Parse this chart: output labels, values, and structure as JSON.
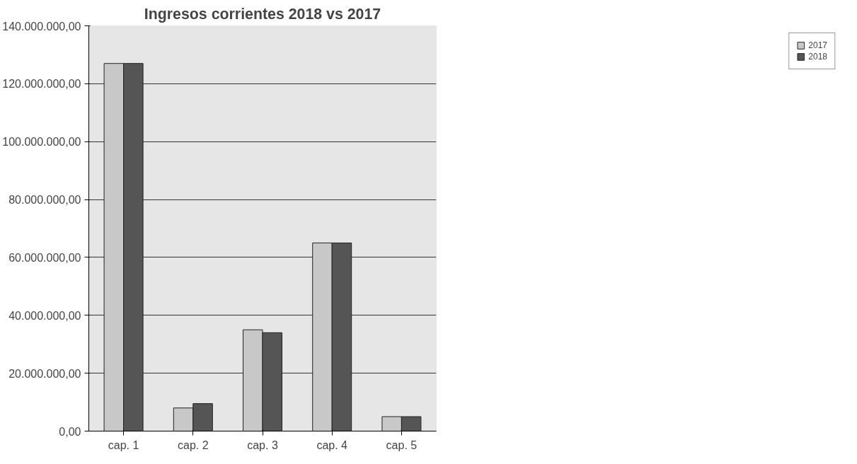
{
  "chart_data": {
    "type": "bar",
    "title": "Ingresos corrientes 2018 vs 2017",
    "categories": [
      "cap. 1",
      "cap. 2",
      "cap. 3",
      "cap. 4",
      "cap. 5"
    ],
    "series": [
      {
        "name": "2017",
        "color": "#c8c8c8",
        "values": [
          127000000,
          8000000,
          35000000,
          65000000,
          5000000
        ]
      },
      {
        "name": "2018",
        "color": "#555555",
        "values": [
          127000000,
          9500000,
          34000000,
          65000000,
          5000000
        ]
      }
    ],
    "ylim": [
      0,
      140000000
    ],
    "yticks": [
      {
        "value": 0,
        "label": "0,00"
      },
      {
        "value": 20000000,
        "label": "20.000.000,00"
      },
      {
        "value": 40000000,
        "label": "40.000.000,00"
      },
      {
        "value": 60000000,
        "label": "60.000.000,00"
      },
      {
        "value": 80000000,
        "label": "80.000.000,00"
      },
      {
        "value": 100000000,
        "label": "100.000.000,00"
      },
      {
        "value": 120000000,
        "label": "120.000.000,00"
      },
      {
        "value": 140000000,
        "label": "140.000.000,00"
      }
    ],
    "grid": "y",
    "legend": "right"
  }
}
